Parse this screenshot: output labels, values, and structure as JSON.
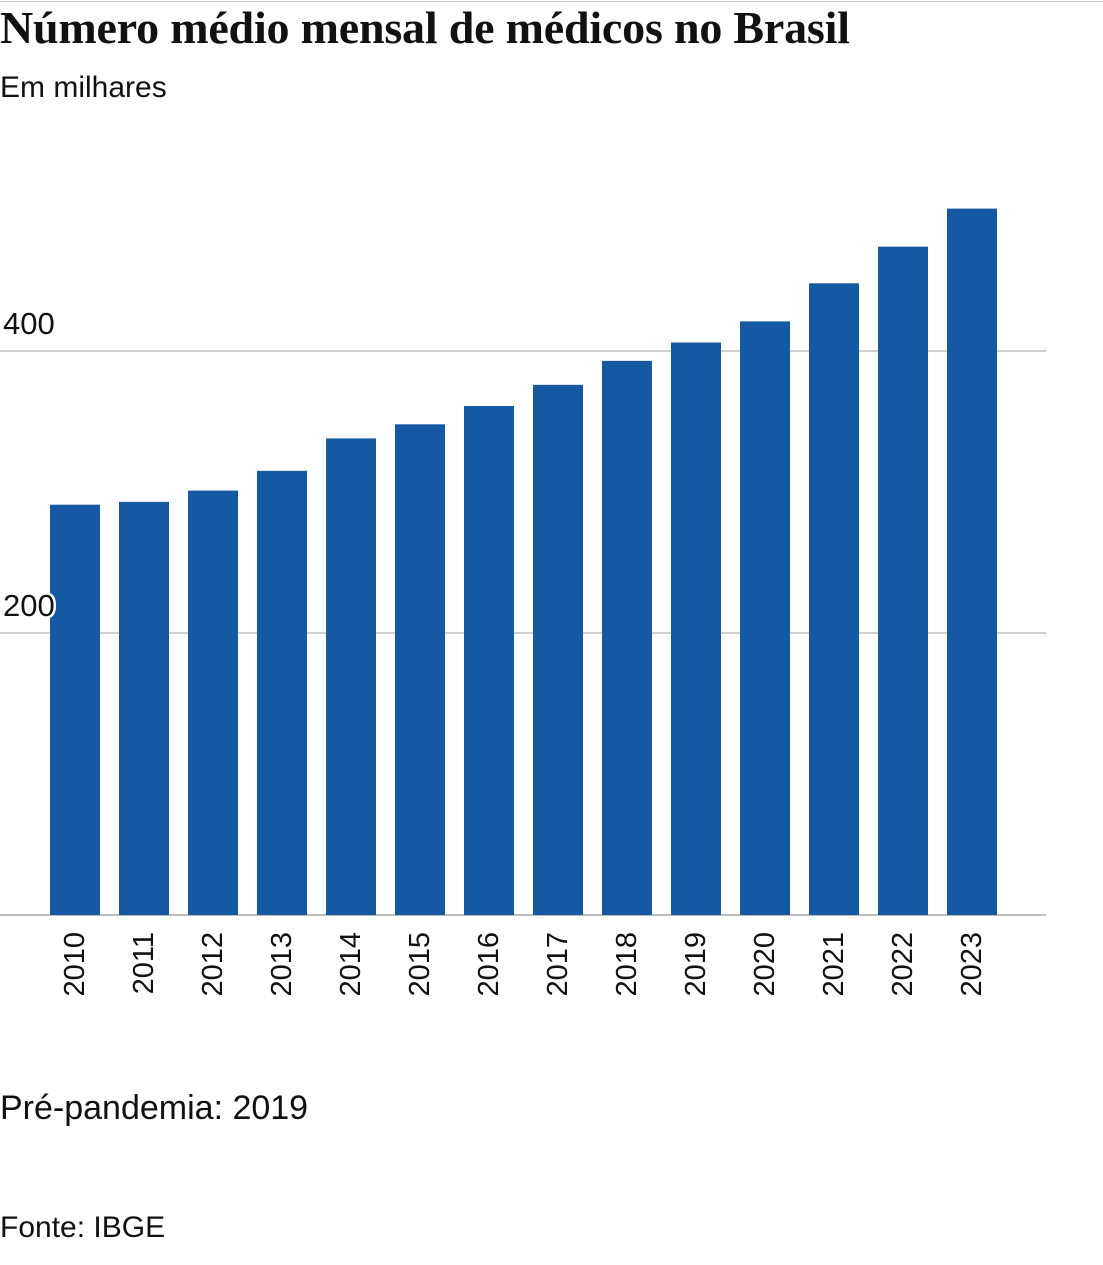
{
  "colors": {
    "bar": "#1559a3",
    "grid": "#cfcfcf",
    "baseline": "#bdbdbd",
    "text": "#111111"
  },
  "chart_data": {
    "type": "bar",
    "title": "Número médio mensal de médicos no Brasil",
    "subtitle": "Em milhares",
    "categories": [
      "2010",
      "2011",
      "2012",
      "2013",
      "2014",
      "2015",
      "2016",
      "2017",
      "2018",
      "2019",
      "2020",
      "2021",
      "2022",
      "2023"
    ],
    "values": [
      291,
      293,
      301,
      315,
      338,
      348,
      361,
      376,
      393,
      406,
      421,
      448,
      474,
      501
    ],
    "xlabel": "",
    "ylabel": "",
    "ylim": [
      0,
      600
    ],
    "yticks": [
      200,
      400
    ],
    "grid": true,
    "annotations": [
      "Pré-pandemia: 2019"
    ],
    "source": "Fonte: IBGE"
  }
}
